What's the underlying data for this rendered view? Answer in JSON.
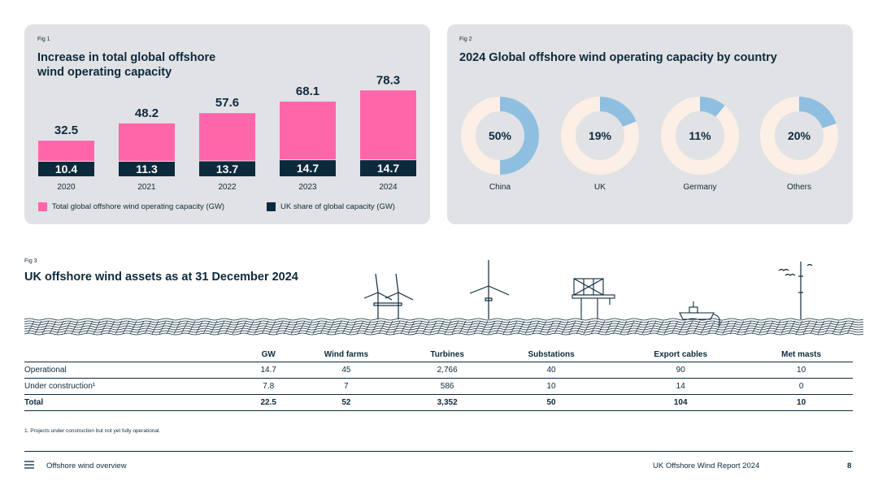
{
  "fig1": {
    "label": "Fig 1",
    "title_line1": "Increase in total global offshore",
    "title_line2": "wind operating capacity",
    "chart_data": {
      "type": "bar",
      "categories": [
        "2020",
        "2021",
        "2022",
        "2023",
        "2024"
      ],
      "series": [
        {
          "name": "Total global offshore wind operating capacity (GW)",
          "values": [
            32.5,
            48.2,
            57.6,
            68.1,
            78.3
          ],
          "color": "#ff66aa"
        },
        {
          "name": "UK share of global capacity (GW)",
          "values": [
            10.4,
            11.3,
            13.7,
            14.7,
            14.7
          ],
          "color": "#0d2a3c"
        }
      ],
      "value_labels_total": [
        "32.5",
        "48.2",
        "57.6",
        "68.1",
        "78.3"
      ],
      "value_labels_uk": [
        "10.4",
        "11.3",
        "13.7",
        "14.7",
        "14.7"
      ],
      "legend_position": "bottom"
    },
    "legend": {
      "total": "Total global offshore wind operating capacity (GW)",
      "uk": "UK share of global capacity (GW)"
    }
  },
  "fig2": {
    "label": "Fig 2",
    "title": "2024 Global offshore wind operating capacity by country",
    "chart_data": {
      "type": "pie",
      "variant": "donut",
      "categories": [
        "China",
        "UK",
        "Germany",
        "Others"
      ],
      "values": [
        50,
        19,
        11,
        20
      ],
      "value_labels": [
        "50%",
        "19%",
        "11%",
        "20%"
      ],
      "colors": {
        "share": "#8fbfe0",
        "rest": "#fcefe5"
      }
    }
  },
  "fig3": {
    "label": "Fig 3",
    "title": "UK offshore wind assets as at 31 December 2024",
    "table": {
      "headers": [
        "",
        "GW",
        "Wind farms",
        "Turbines",
        "Substations",
        "Export cables",
        "Met masts"
      ],
      "rows": [
        [
          "Operational",
          "14.7",
          "45",
          "2,766",
          "40",
          "90",
          "10"
        ],
        [
          "Under construction¹",
          "7.8",
          "7",
          "586",
          "10",
          "14",
          "0"
        ],
        [
          "Total",
          "22.5",
          "52",
          "3,352",
          "50",
          "104",
          "10"
        ]
      ]
    },
    "footnote": "1. Projects under construction but not yet fully operational."
  },
  "footer": {
    "menu_icon": "menu-icon",
    "section": "Offshore wind overview",
    "report": "UK Offshore Wind Report 2024",
    "page": "8"
  },
  "colors": {
    "pink": "#ff66aa",
    "navy": "#0d2a3c",
    "panel": "#e1e2e5",
    "blue": "#8fbfe0",
    "cream": "#fcefe5"
  }
}
